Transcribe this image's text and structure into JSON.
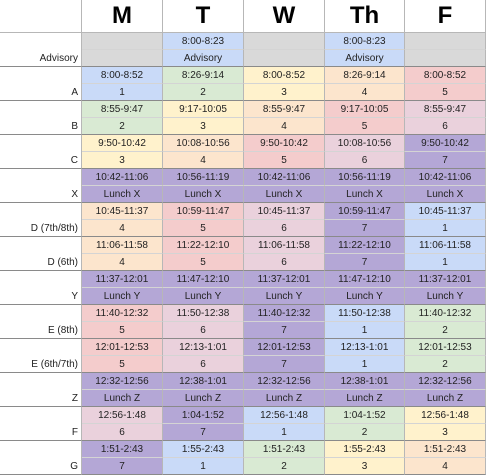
{
  "colors": {
    "gray": "#d9d9d9",
    "blue": "#c9daf8",
    "green": "#d9ead3",
    "yellow": "#fff2cc",
    "red": "#f4cccc",
    "pink": "#ead1dc",
    "orange": "#fce5cd",
    "lunch": "#b4a7d6",
    "white": "#ffffff"
  },
  "days": [
    "M",
    "T",
    "W",
    "Th",
    "F"
  ],
  "rows": [
    {
      "label": "Advisory",
      "cells": [
        {
          "time": "",
          "sub": "",
          "color": "gray"
        },
        {
          "time": "8:00-8:23",
          "sub": "Advisory",
          "color": "blue"
        },
        {
          "time": "",
          "sub": "",
          "color": "gray"
        },
        {
          "time": "8:00-8:23",
          "sub": "Advisory",
          "color": "blue"
        },
        {
          "time": "",
          "sub": "",
          "color": "gray"
        }
      ]
    },
    {
      "label": "A",
      "cells": [
        {
          "time": "8:00-8:52",
          "sub": "1",
          "color": "blue"
        },
        {
          "time": "8:26-9:14",
          "sub": "2",
          "color": "green"
        },
        {
          "time": "8:00-8:52",
          "sub": "3",
          "color": "yellow"
        },
        {
          "time": "8:26-9:14",
          "sub": "4",
          "color": "orange"
        },
        {
          "time": "8:00-8:52",
          "sub": "5",
          "color": "red"
        }
      ]
    },
    {
      "label": "B",
      "cells": [
        {
          "time": "8:55-9:47",
          "sub": "2",
          "color": "green"
        },
        {
          "time": "9:17-10:05",
          "sub": "3",
          "color": "yellow"
        },
        {
          "time": "8:55-9:47",
          "sub": "4",
          "color": "orange"
        },
        {
          "time": "9:17-10:05",
          "sub": "5",
          "color": "red"
        },
        {
          "time": "8:55-9:47",
          "sub": "6",
          "color": "pink"
        }
      ]
    },
    {
      "label": "C",
      "cells": [
        {
          "time": "9:50-10:42",
          "sub": "3",
          "color": "yellow"
        },
        {
          "time": "10:08-10:56",
          "sub": "4",
          "color": "orange"
        },
        {
          "time": "9:50-10:42",
          "sub": "5",
          "color": "red"
        },
        {
          "time": "10:08-10:56",
          "sub": "6",
          "color": "pink"
        },
        {
          "time": "9:50-10:42",
          "sub": "7",
          "color": "lunch"
        }
      ]
    },
    {
      "label": "X",
      "cells": [
        {
          "time": "10:42-11:06",
          "sub": "Lunch X",
          "color": "lunch"
        },
        {
          "time": "10:56-11:19",
          "sub": "Lunch X",
          "color": "lunch"
        },
        {
          "time": "10:42-11:06",
          "sub": "Lunch X",
          "color": "lunch"
        },
        {
          "time": "10:56-11:19",
          "sub": "Lunch X",
          "color": "lunch"
        },
        {
          "time": "10:42-11:06",
          "sub": "Lunch X",
          "color": "lunch"
        }
      ]
    },
    {
      "label": "D (7th/8th)",
      "cells": [
        {
          "time": "10:45-11:37",
          "sub": "4",
          "color": "orange"
        },
        {
          "time": "10:59-11:47",
          "sub": "5",
          "color": "red"
        },
        {
          "time": "10:45-11:37",
          "sub": "6",
          "color": "pink"
        },
        {
          "time": "10:59-11:47",
          "sub": "7",
          "color": "lunch"
        },
        {
          "time": "10:45-11:37",
          "sub": "1",
          "color": "blue"
        }
      ]
    },
    {
      "label": "D (6th)",
      "cells": [
        {
          "time": "11:06-11:58",
          "sub": "4",
          "color": "orange"
        },
        {
          "time": "11:22-12:10",
          "sub": "5",
          "color": "red"
        },
        {
          "time": "11:06-11:58",
          "sub": "6",
          "color": "pink"
        },
        {
          "time": "11:22-12:10",
          "sub": "7",
          "color": "lunch"
        },
        {
          "time": "11:06-11:58",
          "sub": "1",
          "color": "blue"
        }
      ]
    },
    {
      "label": "Y",
      "cells": [
        {
          "time": "11:37-12:01",
          "sub": "Lunch Y",
          "color": "lunch"
        },
        {
          "time": "11:47-12:10",
          "sub": "Lunch Y",
          "color": "lunch"
        },
        {
          "time": "11:37-12:01",
          "sub": "Lunch Y",
          "color": "lunch"
        },
        {
          "time": "11:47-12:10",
          "sub": "Lunch Y",
          "color": "lunch"
        },
        {
          "time": "11:37-12:01",
          "sub": "Lunch Y",
          "color": "lunch"
        }
      ]
    },
    {
      "label": "E (8th)",
      "cells": [
        {
          "time": "11:40-12:32",
          "sub": "5",
          "color": "red"
        },
        {
          "time": "11:50-12:38",
          "sub": "6",
          "color": "pink"
        },
        {
          "time": "11:40-12:32",
          "sub": "7",
          "color": "lunch"
        },
        {
          "time": "11:50-12:38",
          "sub": "1",
          "color": "blue"
        },
        {
          "time": "11:40-12:32",
          "sub": "2",
          "color": "green"
        }
      ]
    },
    {
      "label": "E (6th/7th)",
      "cells": [
        {
          "time": "12:01-12:53",
          "sub": "5",
          "color": "red"
        },
        {
          "time": "12:13-1:01",
          "sub": "6",
          "color": "pink"
        },
        {
          "time": "12:01-12:53",
          "sub": "7",
          "color": "lunch"
        },
        {
          "time": "12:13-1:01",
          "sub": "1",
          "color": "blue"
        },
        {
          "time": "12:01-12:53",
          "sub": "2",
          "color": "green"
        }
      ]
    },
    {
      "label": "Z",
      "cells": [
        {
          "time": "12:32-12:56",
          "sub": "Lunch Z",
          "color": "lunch"
        },
        {
          "time": "12:38-1:01",
          "sub": "Lunch Z",
          "color": "lunch"
        },
        {
          "time": "12:32-12:56",
          "sub": "Lunch Z",
          "color": "lunch"
        },
        {
          "time": "12:38-1:01",
          "sub": "Lunch Z",
          "color": "lunch"
        },
        {
          "time": "12:32-12:56",
          "sub": "Lunch Z",
          "color": "lunch"
        }
      ]
    },
    {
      "label": "F",
      "cells": [
        {
          "time": "12:56-1:48",
          "sub": "6",
          "color": "pink"
        },
        {
          "time": "1:04-1:52",
          "sub": "7",
          "color": "lunch"
        },
        {
          "time": "12:56-1:48",
          "sub": "1",
          "color": "blue"
        },
        {
          "time": "1:04-1:52",
          "sub": "2",
          "color": "green"
        },
        {
          "time": "12:56-1:48",
          "sub": "3",
          "color": "yellow"
        }
      ]
    },
    {
      "label": "G",
      "cells": [
        {
          "time": "1:51-2:43",
          "sub": "7",
          "color": "lunch"
        },
        {
          "time": "1:55-2:43",
          "sub": "1",
          "color": "blue"
        },
        {
          "time": "1:51-2:43",
          "sub": "2",
          "color": "green"
        },
        {
          "time": "1:55-2:43",
          "sub": "3",
          "color": "yellow"
        },
        {
          "time": "1:51-2:43",
          "sub": "4",
          "color": "orange"
        }
      ]
    }
  ]
}
